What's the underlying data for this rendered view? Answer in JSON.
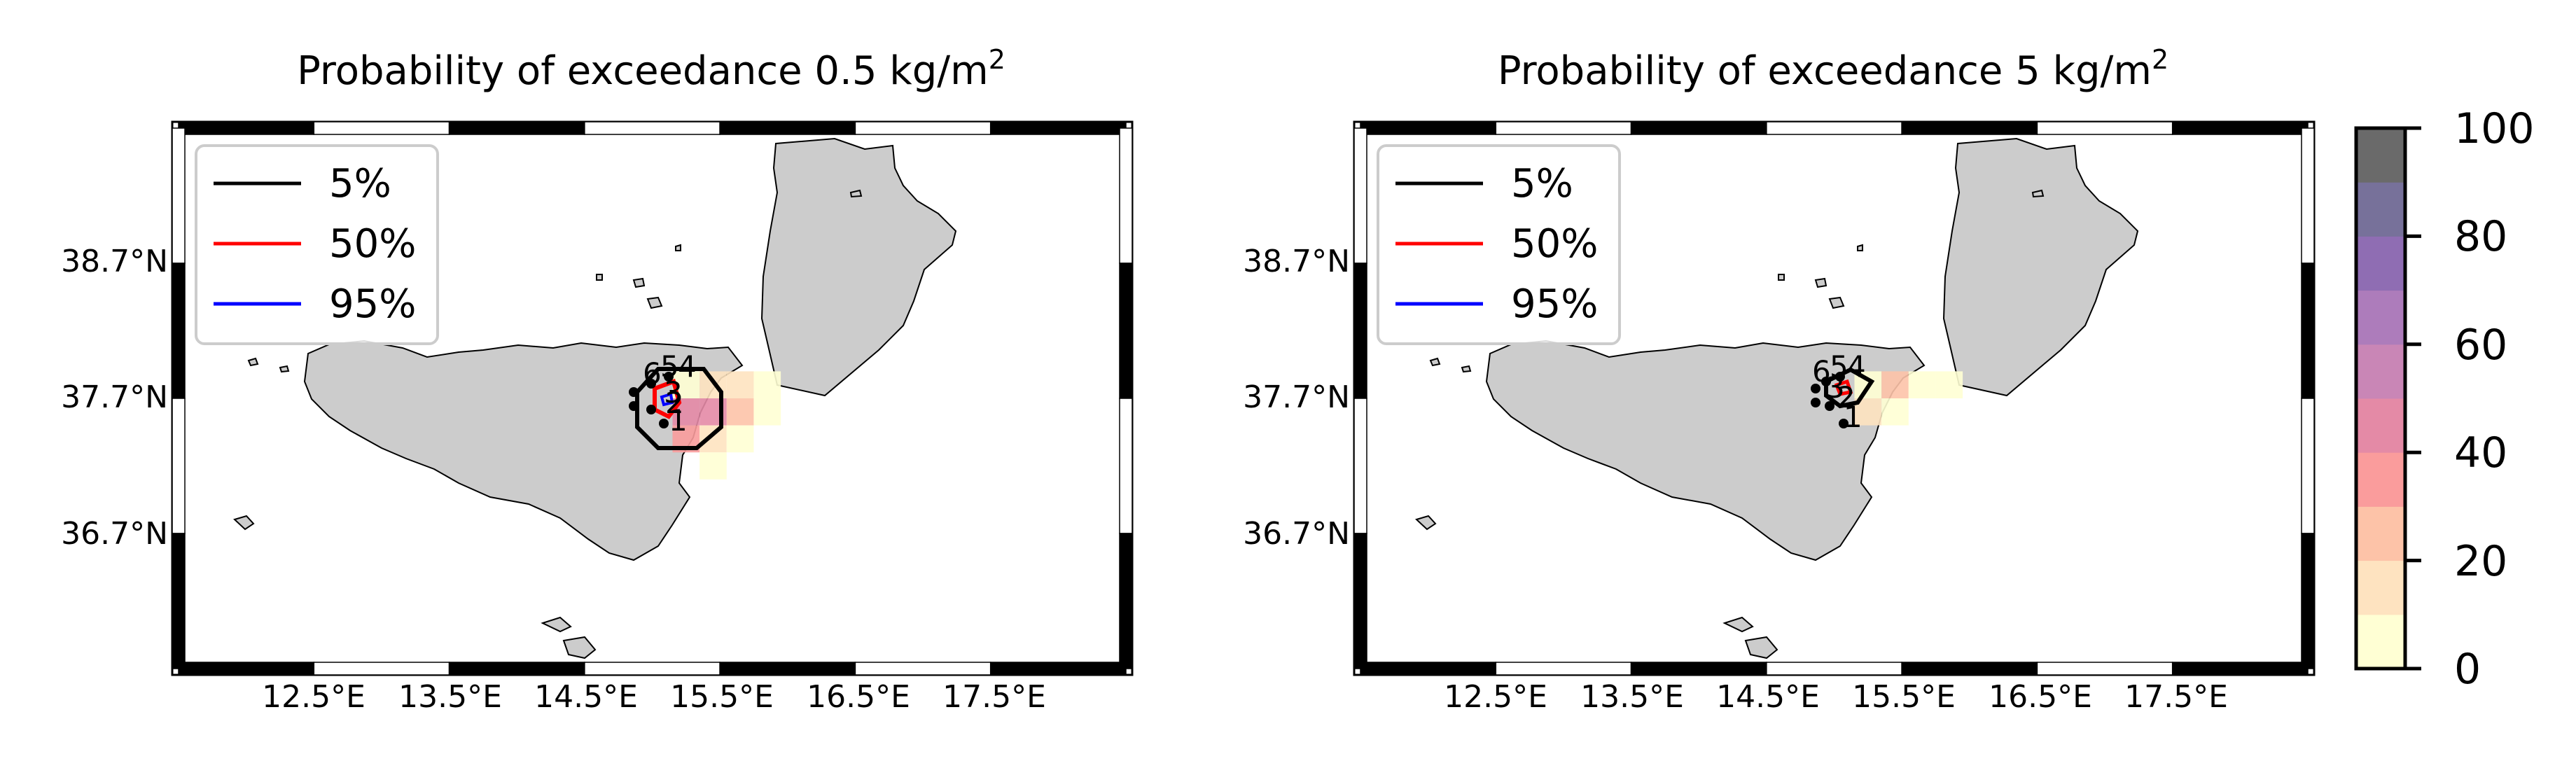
{
  "chart_data": [
    {
      "type": "heatmap",
      "title": "Probability of exceedance 0.5 kg/m",
      "title_sup": "2",
      "xticks": [
        "12.5°E",
        "13.5°E",
        "14.5°E",
        "15.5°E",
        "16.5°E",
        "17.5°E"
      ],
      "yticks": [
        "38.7°N",
        "37.7°N",
        "36.7°N"
      ],
      "xlim": [
        11.3,
        18.3
      ],
      "ylim": [
        35.7,
        39.7
      ],
      "legend": [
        {
          "label": "5%",
          "color": "#000000"
        },
        {
          "label": "50%",
          "color": "#ff0000"
        },
        {
          "label": "95%",
          "color": "#0000ff"
        }
      ],
      "sites": [
        "1",
        "2",
        "3",
        "4",
        "5",
        "6"
      ],
      "cells": [
        {
          "lon": 15.05,
          "lat": 37.8,
          "v": 5
        },
        {
          "lon": 15.25,
          "lat": 37.8,
          "v": 15
        },
        {
          "lon": 15.45,
          "lat": 37.8,
          "v": 10
        },
        {
          "lon": 15.65,
          "lat": 37.8,
          "v": 5
        },
        {
          "lon": 15.05,
          "lat": 37.6,
          "v": 45
        },
        {
          "lon": 15.25,
          "lat": 37.6,
          "v": 45
        },
        {
          "lon": 15.45,
          "lat": 37.6,
          "v": 25
        },
        {
          "lon": 15.65,
          "lat": 37.6,
          "v": 5
        },
        {
          "lon": 15.05,
          "lat": 37.4,
          "v": 35
        },
        {
          "lon": 15.25,
          "lat": 37.4,
          "v": 15
        },
        {
          "lon": 15.45,
          "lat": 37.4,
          "v": 5
        },
        {
          "lon": 15.25,
          "lat": 37.2,
          "v": 5
        }
      ]
    },
    {
      "type": "heatmap",
      "title": "Probability of exceedance 5 kg/m",
      "title_sup": "2",
      "xticks": [
        "12.5°E",
        "13.5°E",
        "14.5°E",
        "15.5°E",
        "16.5°E",
        "17.5°E"
      ],
      "yticks": [
        "38.7°N",
        "37.7°N",
        "36.7°N"
      ],
      "xlim": [
        11.3,
        18.3
      ],
      "ylim": [
        35.7,
        39.7
      ],
      "legend": [
        {
          "label": "5%",
          "color": "#000000"
        },
        {
          "label": "50%",
          "color": "#ff0000"
        },
        {
          "label": "95%",
          "color": "#0000ff"
        }
      ],
      "sites": [
        "1",
        "2",
        "3",
        "4",
        "5",
        "6"
      ],
      "cells": [
        {
          "lon": 15.05,
          "lat": 37.8,
          "v": 5
        },
        {
          "lon": 15.25,
          "lat": 37.8,
          "v": 25
        },
        {
          "lon": 15.45,
          "lat": 37.8,
          "v": 5
        },
        {
          "lon": 15.65,
          "lat": 37.8,
          "v": 5
        },
        {
          "lon": 15.05,
          "lat": 37.6,
          "v": 15
        },
        {
          "lon": 15.25,
          "lat": 37.6,
          "v": 5
        }
      ]
    }
  ],
  "colorbar": {
    "ticks": [
      "0",
      "20",
      "40",
      "60",
      "80",
      "100"
    ],
    "colors": [
      "#ffffd4",
      "#fee3c0",
      "#fdc3a8",
      "#fa9c9c",
      "#e48aa6",
      "#c986b6",
      "#ad7cbb",
      "#8f6db3",
      "#77719a",
      "#6a6a6a"
    ]
  }
}
